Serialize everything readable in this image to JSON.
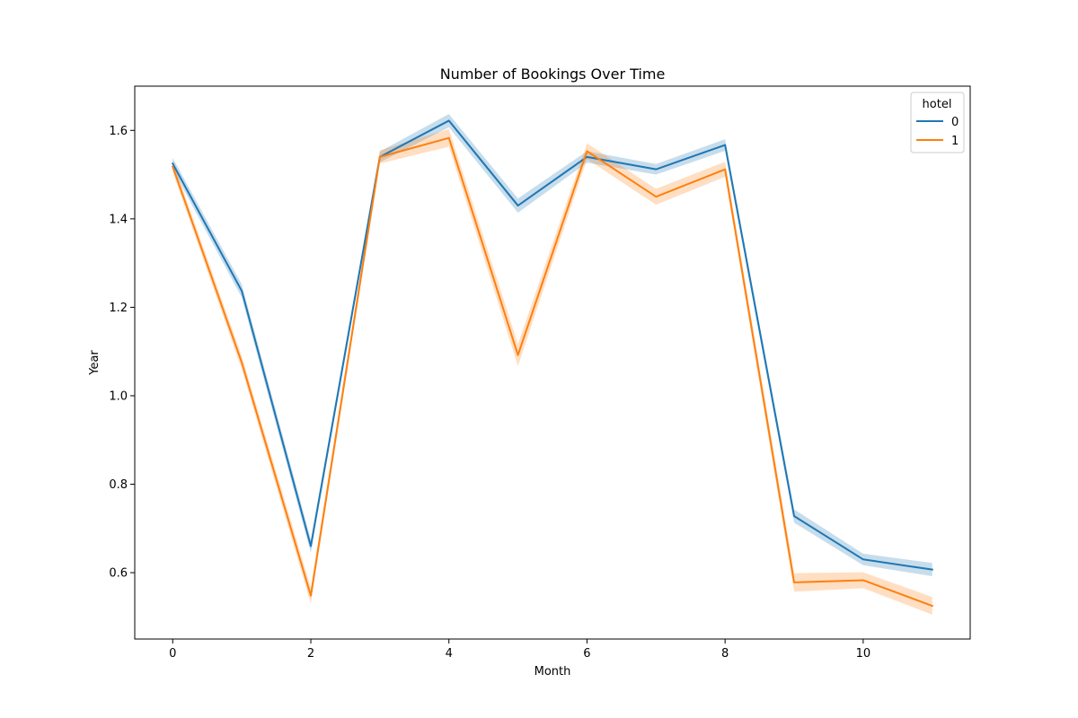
{
  "chart_data": {
    "type": "line",
    "title": "Number of Bookings Over Time",
    "xlabel": "Month",
    "ylabel": "Year",
    "x": [
      0,
      1,
      2,
      3,
      4,
      5,
      6,
      7,
      8,
      9,
      10,
      11
    ],
    "xlim": [
      -0.55,
      11.55
    ],
    "ylim": [
      0.45,
      1.7
    ],
    "xticks": [
      0,
      2,
      4,
      6,
      8,
      10
    ],
    "yticks": [
      0.6,
      0.8,
      1.0,
      1.2,
      1.4,
      1.6
    ],
    "ytick_labels": [
      "0.6",
      "0.8",
      "1.0",
      "1.2",
      "1.4",
      "1.6"
    ],
    "legend": {
      "title": "hotel",
      "placement": "top-right"
    },
    "series": [
      {
        "name": "0",
        "color": "#1f77b4",
        "values": [
          1.525,
          1.237,
          0.66,
          1.54,
          1.622,
          1.43,
          1.54,
          1.512,
          1.567,
          0.728,
          0.63,
          0.607
        ],
        "ci_lower": [
          1.512,
          1.222,
          0.645,
          1.528,
          1.607,
          1.414,
          1.527,
          1.5,
          1.554,
          0.713,
          0.617,
          0.592
        ],
        "ci_upper": [
          1.538,
          1.252,
          0.675,
          1.552,
          1.637,
          1.446,
          1.553,
          1.524,
          1.58,
          0.743,
          0.643,
          0.622
        ]
      },
      {
        "name": "1",
        "color": "#ff7f0e",
        "values": [
          1.518,
          1.075,
          0.548,
          1.54,
          1.583,
          1.092,
          1.553,
          1.45,
          1.512,
          0.578,
          0.583,
          0.525
        ],
        "ci_lower": [
          1.505,
          1.06,
          0.53,
          1.525,
          1.563,
          1.067,
          1.535,
          1.432,
          1.495,
          0.557,
          0.565,
          0.505
        ],
        "ci_upper": [
          1.531,
          1.09,
          0.566,
          1.555,
          1.603,
          1.117,
          1.571,
          1.468,
          1.529,
          0.599,
          0.601,
          0.545
        ]
      }
    ]
  }
}
